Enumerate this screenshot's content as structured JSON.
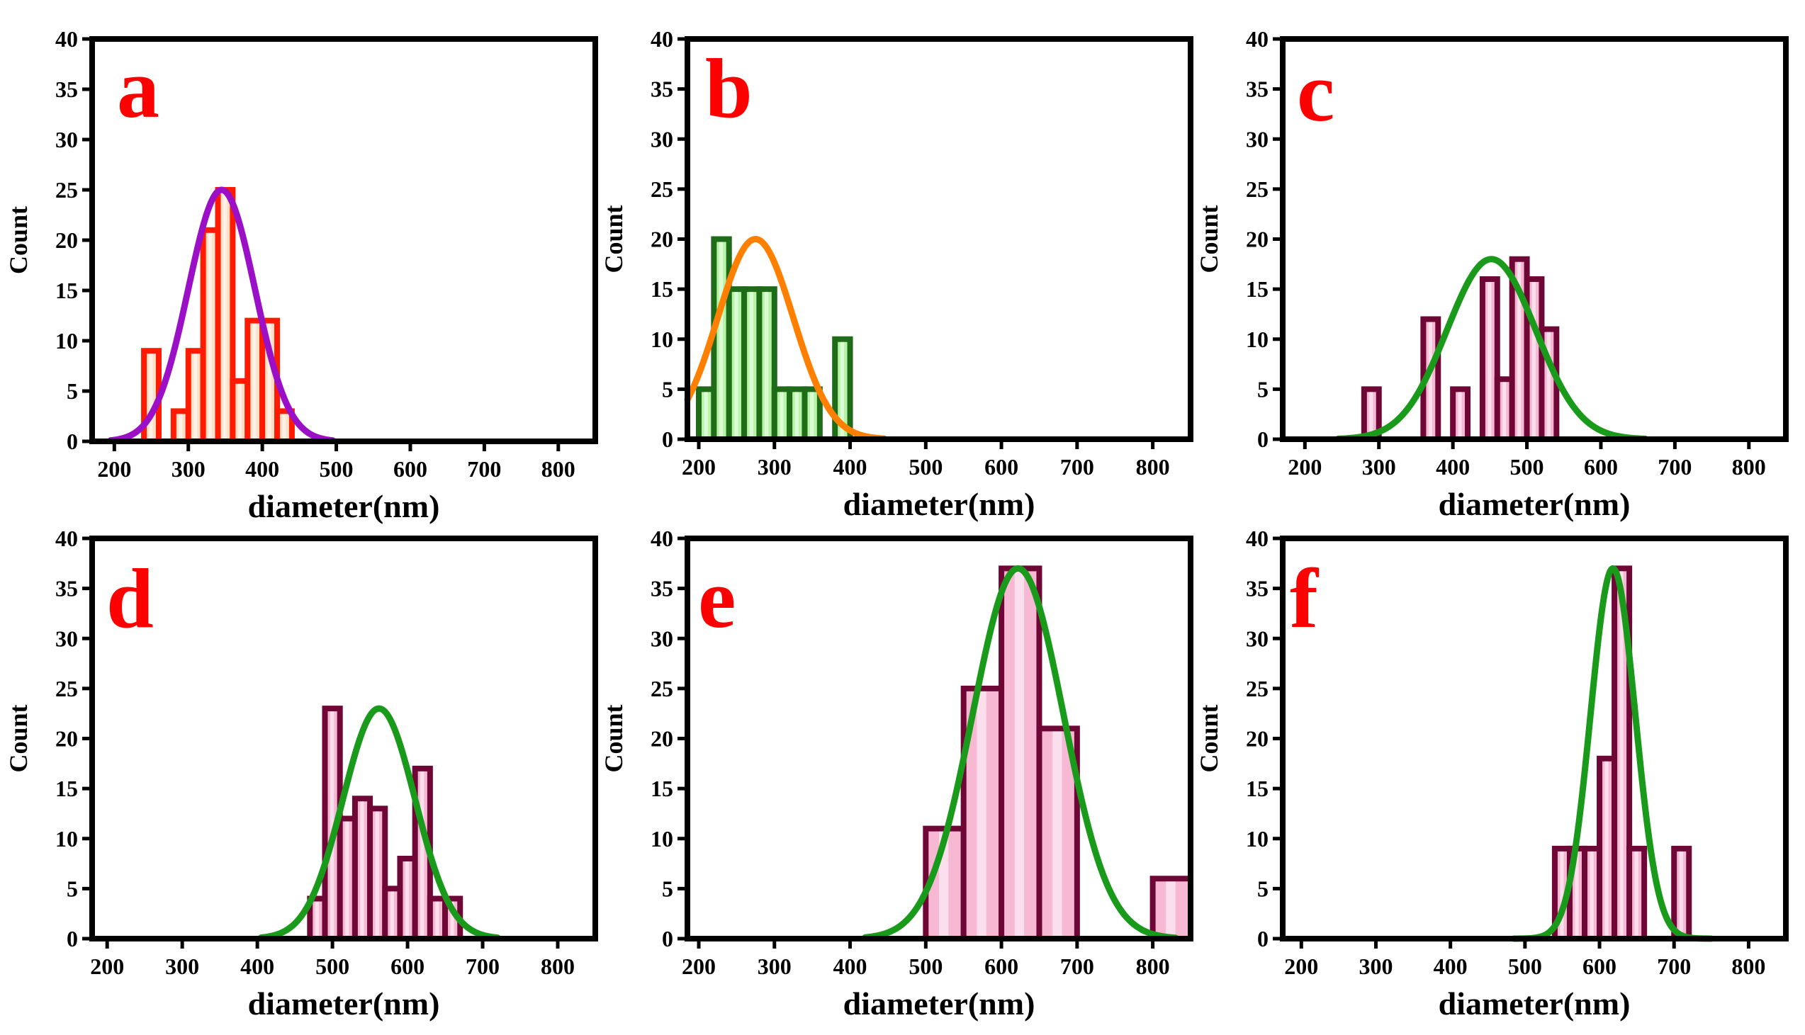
{
  "figure": {
    "caption": ""
  },
  "styles": {
    "a": {
      "bar_fill": "#fde0c6",
      "bar_stroke": "#ff1a00",
      "curve": "#9b10c7",
      "letter": "#ff0000"
    },
    "b": {
      "bar_fill": "#b6f5a6",
      "bar_stroke": "#1e6b18",
      "curve": "#ff8000",
      "letter": "#ff0000"
    },
    "c": {
      "bar_fill": "#f7b8d4",
      "bar_stroke": "#6e0636",
      "curve": "#1a9a1a",
      "letter": "#ff0000"
    },
    "d": {
      "bar_fill": "#f7b8d4",
      "bar_stroke": "#6e0636",
      "curve": "#1a9a1a",
      "letter": "#ff0000"
    },
    "e": {
      "bar_fill": "#f7b8d4",
      "bar_stroke": "#6e0636",
      "curve": "#1a9a1a",
      "letter": "#ff0000"
    },
    "f": {
      "bar_fill": "#f7b8d4",
      "bar_stroke": "#6e0636",
      "curve": "#1a9a1a",
      "letter": "#ff0000"
    }
  },
  "chart_data": [
    {
      "type": "bar",
      "panel": "a",
      "title": "",
      "xlabel": "diameter(nm)",
      "ylabel": "Count",
      "xlim": [
        170,
        850
      ],
      "ylim": [
        0,
        40
      ],
      "xticks": [
        200,
        300,
        400,
        500,
        600,
        700,
        800
      ],
      "yticks": [
        0,
        5,
        10,
        15,
        20,
        25,
        30,
        35,
        40
      ],
      "bin_width": 20,
      "bin_starts": [
        240,
        260,
        280,
        300,
        320,
        340,
        360,
        380,
        400,
        420
      ],
      "values": [
        9,
        0,
        3,
        9,
        21,
        25,
        6,
        12,
        12,
        3
      ],
      "fit": {
        "type": "gaussian",
        "mean": 345,
        "sd": 45,
        "peak": 25,
        "range": [
          195,
          495
        ]
      }
    },
    {
      "type": "bar",
      "panel": "b",
      "title": "",
      "xlabel": "diameter(nm)",
      "ylabel": "Count",
      "xlim": [
        185,
        850
      ],
      "ylim": [
        0,
        40
      ],
      "xticks": [
        200,
        300,
        400,
        500,
        600,
        700,
        800
      ],
      "yticks": [
        0,
        5,
        10,
        15,
        20,
        25,
        30,
        35,
        40
      ],
      "bin_width": 20,
      "bin_starts": [
        200,
        220,
        240,
        260,
        280,
        300,
        320,
        340,
        360,
        380
      ],
      "values": [
        5,
        20,
        15,
        15,
        15,
        5,
        5,
        5,
        0,
        10
      ],
      "fit": {
        "type": "gaussian",
        "mean": 275,
        "sd": 50,
        "peak": 20,
        "range": [
          185,
          445
        ]
      }
    },
    {
      "type": "bar",
      "panel": "c",
      "title": "",
      "xlabel": "diameter(nm)",
      "ylabel": "Count",
      "xlim": [
        170,
        850
      ],
      "ylim": [
        0,
        40
      ],
      "xticks": [
        200,
        300,
        400,
        500,
        600,
        700,
        800
      ],
      "yticks": [
        0,
        5,
        10,
        15,
        20,
        25,
        30,
        35,
        40
      ],
      "bin_width": 20,
      "bin_starts": [
        280,
        300,
        320,
        340,
        360,
        380,
        400,
        420,
        440,
        460,
        480,
        500,
        520
      ],
      "values": [
        5,
        0,
        0,
        0,
        12,
        0,
        5,
        0,
        16,
        6,
        18,
        16,
        11
      ],
      "fit": {
        "type": "gaussian",
        "mean": 452,
        "sd": 60,
        "peak": 18,
        "range": [
          245,
          660
        ]
      }
    },
    {
      "type": "bar",
      "panel": "d",
      "title": "",
      "xlabel": "diameter(nm)",
      "ylabel": "Count",
      "xlim": [
        180,
        850
      ],
      "ylim": [
        0,
        40
      ],
      "xticks": [
        200,
        300,
        400,
        500,
        600,
        700,
        800
      ],
      "yticks": [
        0,
        5,
        10,
        15,
        20,
        25,
        30,
        35,
        40
      ],
      "bin_width": 20,
      "bin_starts": [
        470,
        490,
        510,
        530,
        550,
        570,
        590,
        610,
        630,
        650
      ],
      "values": [
        4,
        23,
        12,
        14,
        13,
        5,
        8,
        17,
        4,
        4
      ],
      "fit": {
        "type": "gaussian",
        "mean": 562,
        "sd": 48,
        "peak": 23,
        "range": [
          405,
          720
        ]
      }
    },
    {
      "type": "bar",
      "panel": "e",
      "title": "",
      "xlabel": "diameter(nm)",
      "ylabel": "Count",
      "xlim": [
        185,
        850
      ],
      "ylim": [
        0,
        40
      ],
      "xticks": [
        200,
        300,
        400,
        500,
        600,
        700,
        800
      ],
      "yticks": [
        0,
        5,
        10,
        15,
        20,
        25,
        30,
        35,
        40
      ],
      "bin_width": 50,
      "bin_starts": [
        500,
        550,
        600,
        650,
        700,
        750,
        800
      ],
      "values": [
        11,
        25,
        37,
        21,
        0,
        0,
        6
      ],
      "fit": {
        "type": "gaussian",
        "mean": 622,
        "sd": 60,
        "peak": 37,
        "range": [
          420,
          830
        ]
      }
    },
    {
      "type": "bar",
      "panel": "f",
      "title": "",
      "xlabel": "diameter(nm)",
      "ylabel": "Count",
      "xlim": [
        175,
        850
      ],
      "ylim": [
        0,
        40
      ],
      "xticks": [
        200,
        300,
        400,
        500,
        600,
        700,
        800
      ],
      "yticks": [
        0,
        5,
        10,
        15,
        20,
        25,
        30,
        35,
        40
      ],
      "bin_width": 20,
      "bin_starts": [
        540,
        560,
        580,
        600,
        620,
        640,
        660,
        680,
        700
      ],
      "values": [
        9,
        9,
        9,
        18,
        37,
        9,
        0,
        0,
        9
      ],
      "fit": {
        "type": "gaussian",
        "mean": 618,
        "sd": 30,
        "peak": 37,
        "range": [
          485,
          750
        ]
      }
    }
  ]
}
